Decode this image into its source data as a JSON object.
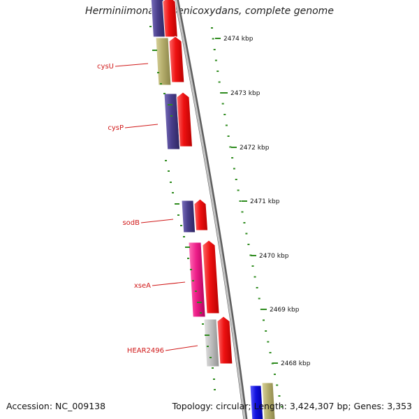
{
  "map": {
    "title": "Herminiimonas arsenicoxydans, complete genome",
    "accession_label": "Accession: NC_009138",
    "summary_label": "Topology: circular; Length: 3,424,307 bp; Genes: 3,353",
    "position_labels": [
      {
        "text": "2474 kbp"
      },
      {
        "text": "2473 kbp"
      },
      {
        "text": "2472 kbp"
      },
      {
        "text": "2471 kbp"
      },
      {
        "text": "2470 kbp"
      },
      {
        "text": "2469 kbp"
      },
      {
        "text": "2468 kbp"
      }
    ],
    "gene_labels": [
      {
        "text": "cysU"
      },
      {
        "text": "cysP"
      },
      {
        "text": "sodB"
      },
      {
        "text": "xseA"
      },
      {
        "text": "HEAR2496"
      }
    ],
    "colors": {
      "backbone": "#8a8a8a",
      "tick": "#2e8b1e",
      "gene_label": "#d01818",
      "cds_red": "#ee1111",
      "purple": "#4a3f8c",
      "olive": "#b4ad6c",
      "magenta": "#ee1f8a",
      "grey": "#c0c0c0",
      "blue": "#1010dd"
    }
  }
}
